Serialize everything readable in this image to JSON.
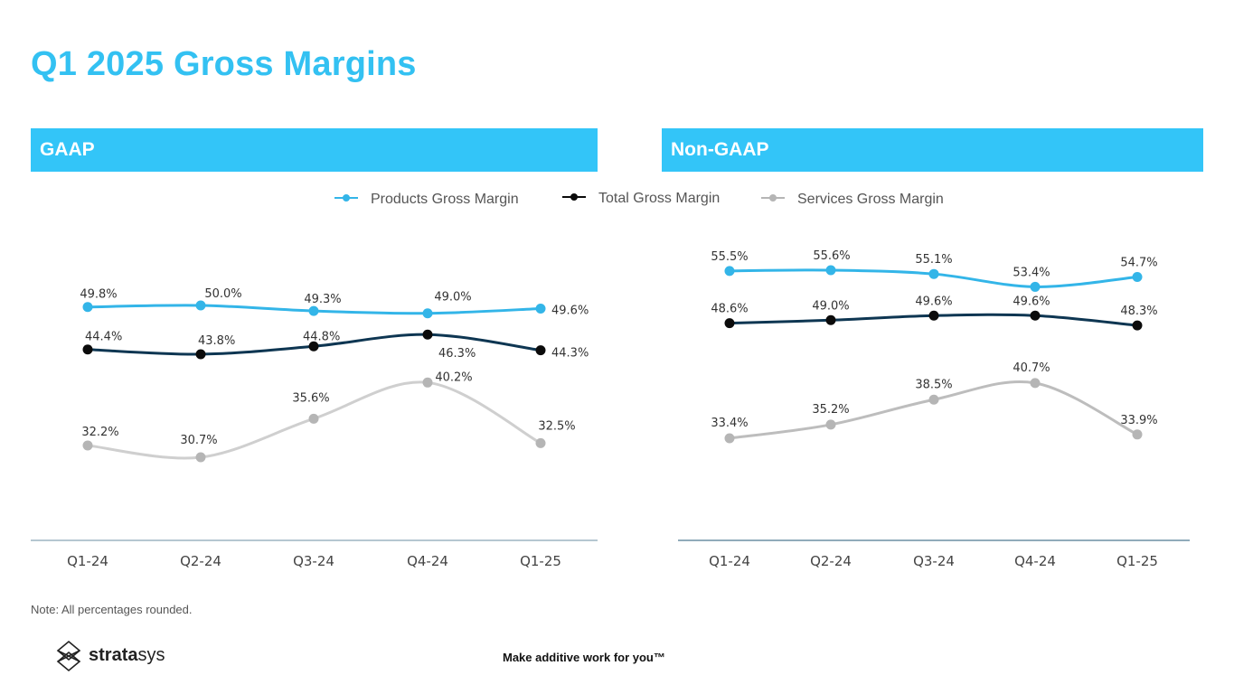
{
  "title": "Q1 2025 Gross Margins",
  "panels": {
    "gaap": "GAAP",
    "nongaap": "Non-GAAP"
  },
  "legend": {
    "products": "Products Gross Margin",
    "total": "Total Gross Margin",
    "services": "Services Gross Margin"
  },
  "colors": {
    "products": "#33b5e8",
    "total": "#0e3652",
    "services_gaap": "#cfcfcf",
    "services_nongaap": "#bdbdbd",
    "marker_services": "#b5b5b5",
    "axis": "#6b8fa3"
  },
  "chart_data": [
    {
      "type": "line",
      "title": "GAAP",
      "categories": [
        "Q1-24",
        "Q2-24",
        "Q3-24",
        "Q4-24",
        "Q1-25"
      ],
      "ylim": [
        25,
        60
      ],
      "series": [
        {
          "name": "Products Gross Margin",
          "key": "products",
          "values": [
            49.8,
            50.0,
            49.3,
            49.0,
            49.6
          ],
          "labels": [
            "49.8%",
            "50.0%",
            "49.3%",
            "49.0%",
            "49.6%"
          ]
        },
        {
          "name": "Total Gross Margin",
          "key": "total",
          "values": [
            44.4,
            43.8,
            44.8,
            46.3,
            44.3
          ],
          "labels": [
            "44.4%",
            "43.8%",
            "44.8%",
            "46.3%",
            "44.3%"
          ]
        },
        {
          "name": "Services Gross Margin",
          "key": "services",
          "values": [
            32.2,
            30.7,
            35.6,
            40.2,
            32.5
          ],
          "labels": [
            "32.2%",
            "30.7%",
            "35.6%",
            "40.2%",
            "32.5%"
          ]
        }
      ]
    },
    {
      "type": "line",
      "title": "Non-GAAP",
      "categories": [
        "Q1-24",
        "Q2-24",
        "Q3-24",
        "Q4-24",
        "Q1-25"
      ],
      "ylim": [
        25,
        60
      ],
      "series": [
        {
          "name": "Products Gross Margin",
          "key": "products",
          "values": [
            55.5,
            55.6,
            55.1,
            53.4,
            54.7
          ],
          "labels": [
            "55.5%",
            "55.6%",
            "55.1%",
            "53.4%",
            "54.7%"
          ]
        },
        {
          "name": "Total Gross Margin",
          "key": "total",
          "values": [
            48.6,
            49.0,
            49.6,
            49.6,
            48.3
          ],
          "labels": [
            "48.6%",
            "49.0%",
            "49.6%",
            "49.6%",
            "48.3%"
          ]
        },
        {
          "name": "Services Gross Margin",
          "key": "services",
          "values": [
            33.4,
            35.2,
            38.5,
            40.7,
            33.9
          ],
          "labels": [
            "33.4%",
            "35.2%",
            "38.5%",
            "40.7%",
            "33.9%"
          ]
        }
      ]
    }
  ],
  "note": "Note: All percentages rounded.",
  "footer": {
    "tagline": "Make additive work for you™",
    "logo_bold": "strata",
    "logo_light": "sys",
    "logo_icon": "stratasys-logo-icon"
  }
}
